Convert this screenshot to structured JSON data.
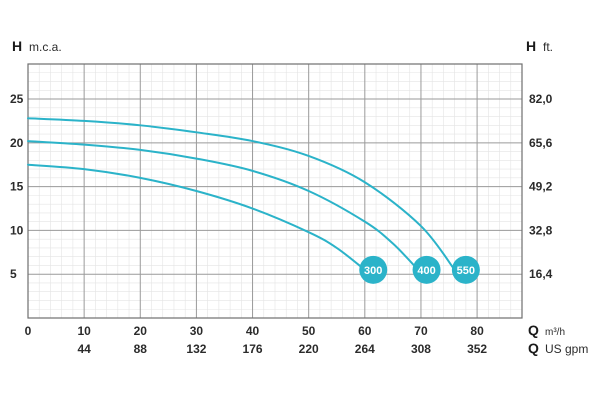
{
  "chart_data": {
    "type": "line",
    "title": "",
    "y_left": {
      "letter": "H",
      "unit": "m.c.a.",
      "ticks": [
        5,
        10,
        15,
        20,
        25
      ],
      "tick_labels": [
        "5",
        "10",
        "15",
        "20",
        "25"
      ],
      "range": [
        0,
        29
      ]
    },
    "y_right": {
      "letter": "H",
      "unit": "ft.",
      "tick_labels": [
        "16,4",
        "32,8",
        "49,2",
        "65,6",
        "82,0"
      ]
    },
    "x_primary": {
      "letter": "Q",
      "unit": "m³/h",
      "ticks": [
        0,
        10,
        20,
        30,
        40,
        50,
        60,
        70,
        80
      ],
      "tick_labels": [
        "0",
        "10",
        "20",
        "30",
        "40",
        "50",
        "60",
        "70",
        "80"
      ],
      "range": [
        0,
        88
      ]
    },
    "x_secondary": {
      "letter": "Q",
      "unit": "US gpm",
      "tick_labels": [
        "44",
        "88",
        "132",
        "176",
        "220",
        "264",
        "308",
        "352"
      ]
    },
    "grid": true,
    "series_color": "#2bb3c9",
    "series": [
      {
        "label": "300",
        "points": [
          [
            0,
            17.5
          ],
          [
            10,
            17.0
          ],
          [
            20,
            16.0
          ],
          [
            30,
            14.5
          ],
          [
            40,
            12.5
          ],
          [
            50,
            9.8
          ],
          [
            55,
            8.0
          ],
          [
            60,
            5.5
          ]
        ],
        "end_label_position": [
          61.5,
          5.5
        ]
      },
      {
        "label": "400",
        "points": [
          [
            0,
            20.2
          ],
          [
            10,
            19.8
          ],
          [
            20,
            19.2
          ],
          [
            30,
            18.2
          ],
          [
            40,
            16.8
          ],
          [
            50,
            14.5
          ],
          [
            60,
            11.0
          ],
          [
            65,
            8.5
          ],
          [
            69.5,
            5.5
          ]
        ],
        "end_label_position": [
          71,
          5.5
        ]
      },
      {
        "label": "550",
        "points": [
          [
            0,
            22.8
          ],
          [
            10,
            22.5
          ],
          [
            20,
            22.0
          ],
          [
            30,
            21.2
          ],
          [
            40,
            20.2
          ],
          [
            50,
            18.5
          ],
          [
            60,
            15.5
          ],
          [
            70,
            10.5
          ],
          [
            76,
            5.5
          ]
        ],
        "end_label_position": [
          78,
          5.5
        ]
      }
    ]
  }
}
